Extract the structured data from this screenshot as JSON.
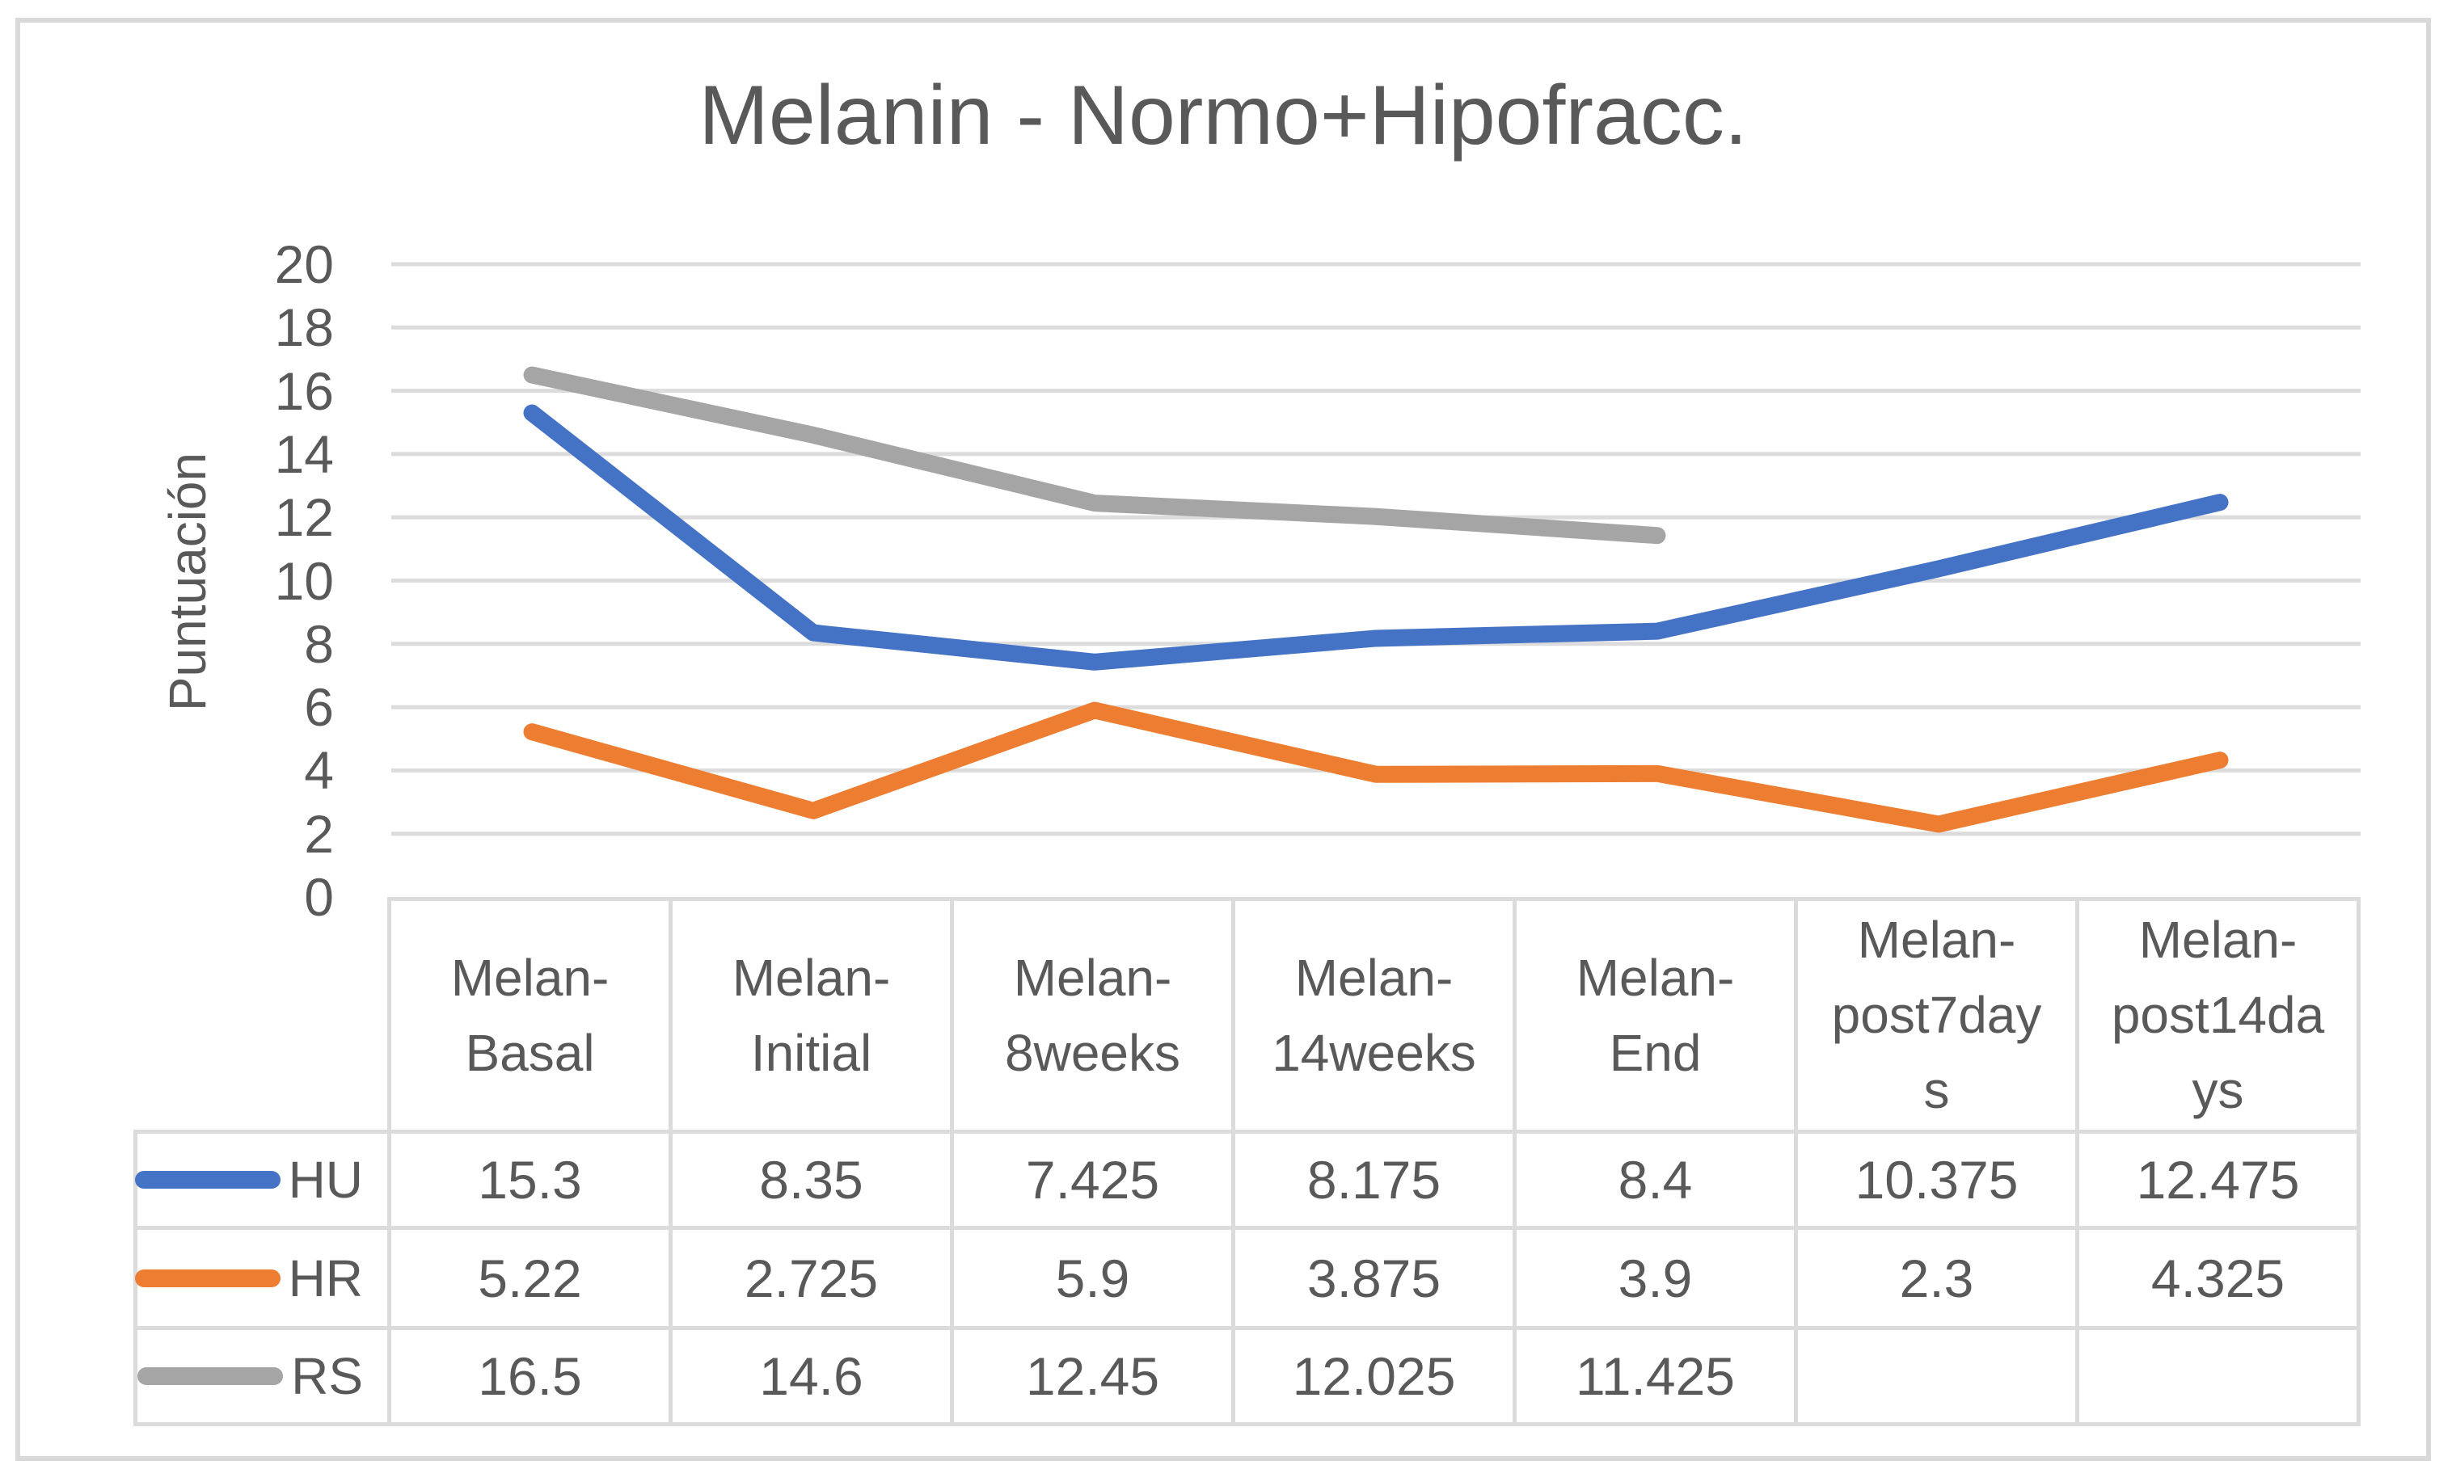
{
  "title": "Melanin - Normo+Hipofracc.",
  "chart_data": {
    "type": "line",
    "title": "Melanin - Normo+Hipofracc.",
    "xlabel": "",
    "ylabel": "Puntuación",
    "ylim": [
      0,
      20
    ],
    "ytick_step": 2,
    "yticks": [
      "0",
      "2",
      "4",
      "6",
      "8",
      "10",
      "12",
      "14",
      "16",
      "18",
      "20"
    ],
    "grid": true,
    "gridline_color": "#DCDCDC",
    "text_color": "#595959",
    "legend_position": "data-table-left",
    "categories": [
      "Melan-Basal",
      "Melan-Initial",
      "Melan-8weeks",
      "Melan-14weeks",
      "Melan-End",
      "Melan-post7days",
      "Melan-post14days"
    ],
    "series": [
      {
        "name": "HU",
        "color": "#4472C4",
        "values": [
          15.3,
          8.35,
          7.425,
          8.175,
          8.4,
          10.375,
          12.475
        ]
      },
      {
        "name": "HR",
        "color": "#ED7D31",
        "values": [
          5.22,
          2.725,
          5.9,
          3.875,
          3.9,
          2.3,
          4.325
        ]
      },
      {
        "name": "RS",
        "color": "#A5A5A5",
        "values": [
          16.5,
          14.6,
          12.45,
          12.025,
          11.425,
          null,
          null
        ]
      }
    ]
  },
  "table": {
    "corner_label": "",
    "columns": [
      {
        "label": "Melan-Basal",
        "lines": [
          "Melan-",
          "Basal"
        ]
      },
      {
        "label": "Melan-Initial",
        "lines": [
          "Melan-",
          "Initial"
        ]
      },
      {
        "label": "Melan-8weeks",
        "lines": [
          "Melan-",
          "8weeks"
        ]
      },
      {
        "label": "Melan-14weeks",
        "lines": [
          "Melan-",
          "14weeks"
        ]
      },
      {
        "label": "Melan-End",
        "lines": [
          "Melan-",
          "End"
        ]
      },
      {
        "label": "Melan-post7days",
        "lines": [
          "Melan-",
          "post7day",
          "s"
        ]
      },
      {
        "label": "Melan-post14days",
        "lines": [
          "Melan-",
          "post14da",
          "ys"
        ]
      }
    ],
    "rows": [
      {
        "name": "HU",
        "swatch_color": "#4472C4",
        "cells": [
          "15.3",
          "8.35",
          "7.425",
          "8.175",
          "8.4",
          "10.375",
          "12.475"
        ]
      },
      {
        "name": "HR",
        "swatch_color": "#ED7D31",
        "cells": [
          "5.22",
          "2.725",
          "5.9",
          "3.875",
          "3.9",
          "2.3",
          "4.325"
        ]
      },
      {
        "name": "RS",
        "swatch_color": "#A5A5A5",
        "cells": [
          "16.5",
          "14.6",
          "12.45",
          "12.025",
          "11.425",
          "",
          ""
        ]
      }
    ]
  }
}
